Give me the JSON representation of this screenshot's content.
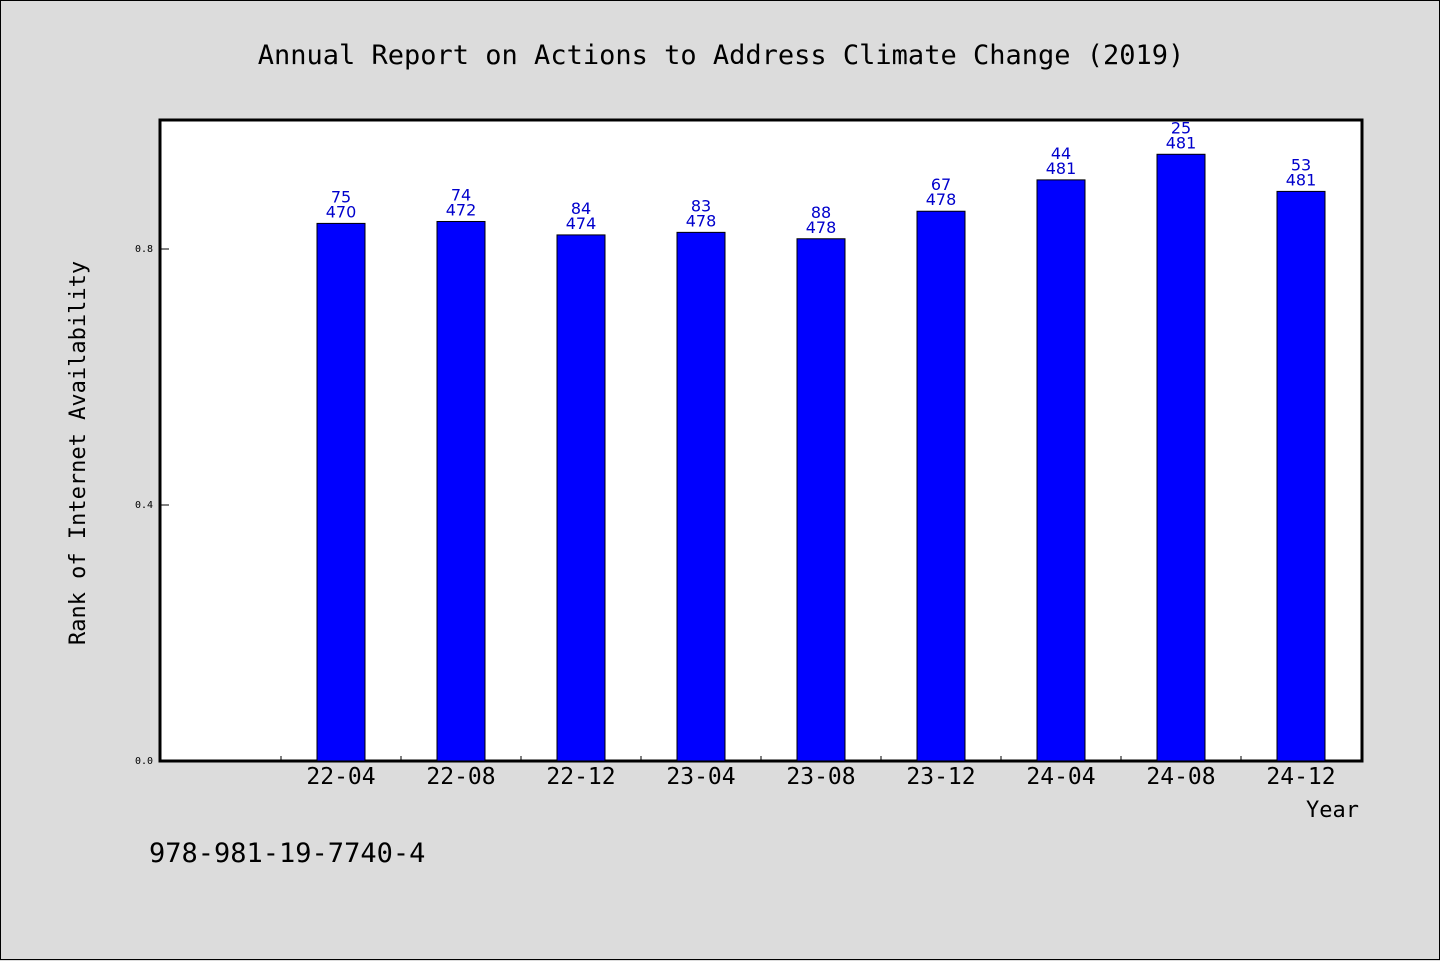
{
  "isbn": "978-981-19-7740-4",
  "colors": {
    "bar": "#0000ff",
    "bar_label": "#0000cc",
    "background": "#dcdcdc",
    "plot_area": "#ffffff"
  },
  "chart_data": {
    "type": "bar",
    "title": "Annual Report on Actions to Address Climate Change (2019)",
    "xlabel": "Year",
    "ylabel": "Rank of Internet Availability",
    "categories": [
      "22-04",
      "22-08",
      "22-12",
      "23-04",
      "23-08",
      "23-12",
      "24-04",
      "24-08",
      "24-12"
    ],
    "values": [
      0.84,
      0.843,
      0.822,
      0.826,
      0.816,
      0.859,
      0.908,
      0.948,
      0.89
    ],
    "rank": [
      75,
      74,
      84,
      83,
      88,
      67,
      44,
      25,
      53
    ],
    "total": [
      470,
      472,
      474,
      478,
      478,
      478,
      481,
      481,
      481
    ],
    "yticks": [
      "0.0",
      "0.4",
      "0.8"
    ],
    "ylim": [
      0,
      1.0
    ],
    "grid": false,
    "legend": "none"
  }
}
